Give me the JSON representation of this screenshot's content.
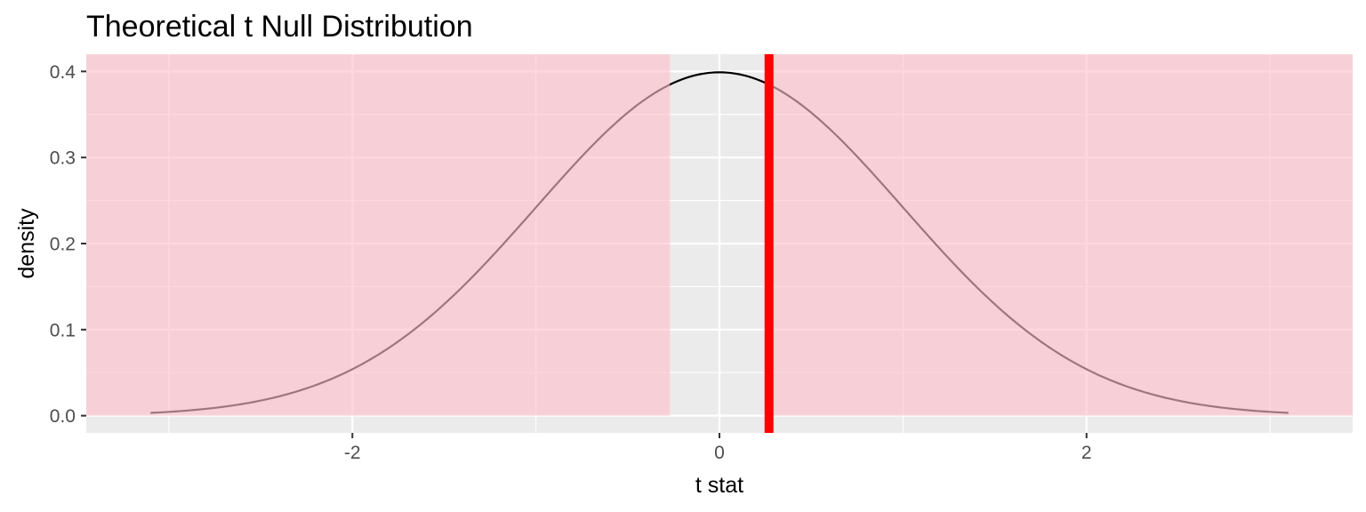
{
  "chart_data": {
    "type": "line",
    "title": "Theoretical t Null Distribution",
    "xlabel": "t stat",
    "ylabel": "density",
    "xlim": [
      -3.45,
      3.45
    ],
    "ylim": [
      -0.02,
      0.42
    ],
    "x_ticks": [
      -2,
      0,
      2
    ],
    "x_tick_labels": [
      "-2",
      "0",
      "2"
    ],
    "y_ticks": [
      0.0,
      0.1,
      0.2,
      0.3,
      0.4
    ],
    "y_tick_labels": [
      "0.0",
      "0.1",
      "0.2",
      "0.3",
      "0.4"
    ],
    "grid": true,
    "curve": {
      "distribution": "t",
      "x_range": [
        -3.1,
        3.1
      ],
      "peak_density": 0.399,
      "color": "#000000"
    },
    "observed_stat": {
      "value": 0.27,
      "color": "#ff0000"
    },
    "shaded_regions": [
      {
        "x_from": -3.45,
        "x_to": -0.27
      },
      {
        "x_from": 0.27,
        "x_to": 3.45
      }
    ],
    "shade_color": "#ffc0cb",
    "panel_background": "#ebebeb"
  }
}
